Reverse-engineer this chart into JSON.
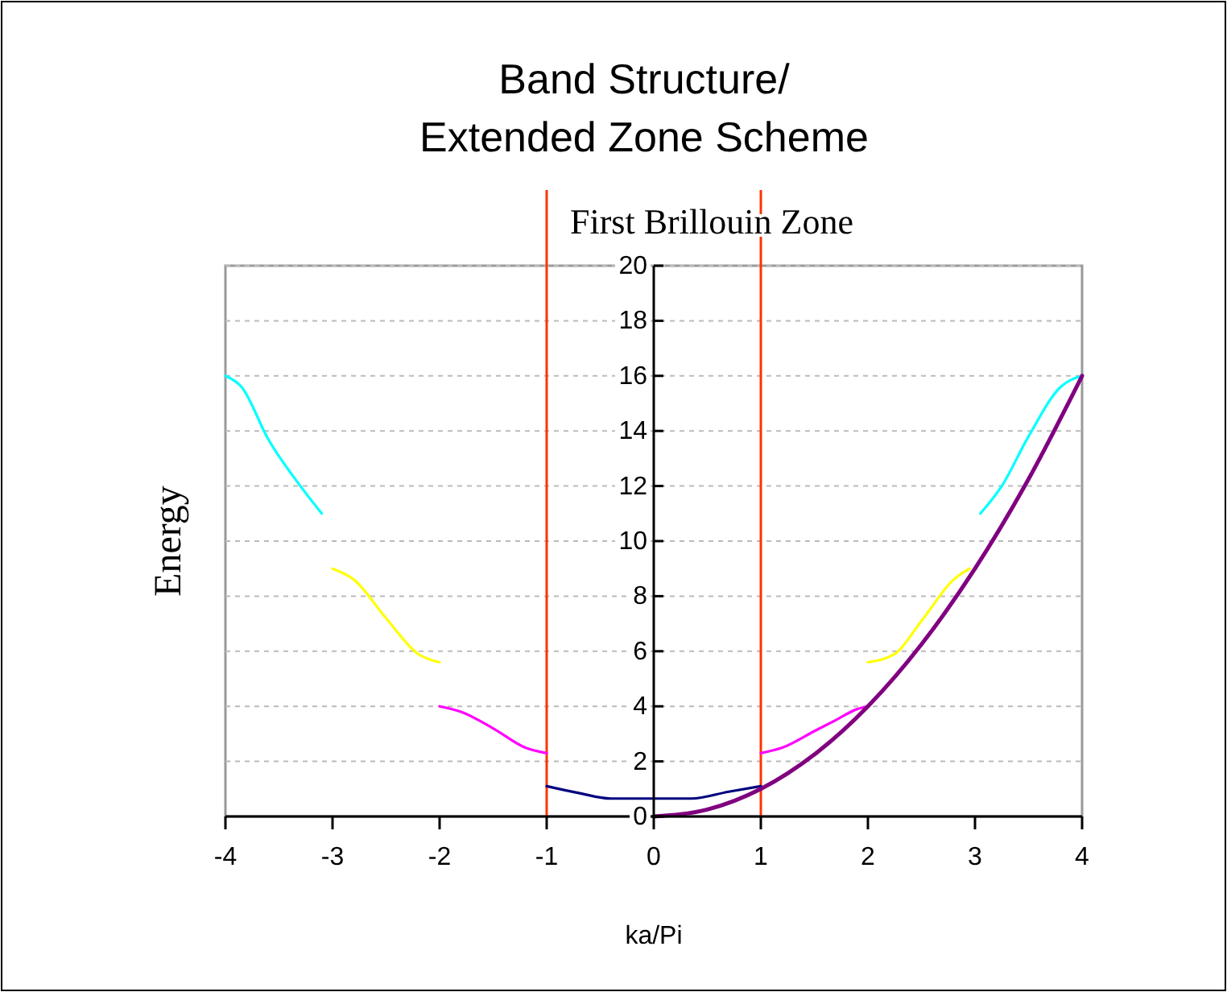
{
  "chart_data": {
    "type": "line",
    "title": "Band Structure/\nExtended Zone Scheme",
    "xlabel": "ka/Pi",
    "ylabel": "Energy",
    "annotations": [
      "First Brillouin Zone"
    ],
    "xlim": [
      -4,
      4
    ],
    "xticks": [
      -4,
      -3,
      -2,
      -1,
      0,
      1,
      2,
      3,
      4
    ],
    "ylim": [
      0,
      20
    ],
    "yticks": [
      0,
      2,
      4,
      6,
      8,
      10,
      12,
      14,
      16,
      18,
      20
    ],
    "grid": "y",
    "marker": "none",
    "line_style": "solid",
    "ref_lines": [
      {
        "axis": "x",
        "value": -1,
        "color": "#ff3300"
      },
      {
        "axis": "x",
        "value": 1,
        "color": "#ff3300"
      }
    ],
    "series": [
      {
        "color": "#000080",
        "x": [
          -1,
          -0.7,
          -0.4,
          0,
          0.35,
          0.7,
          1
        ],
        "values": [
          1.1,
          0.85,
          0.65,
          0.65,
          0.65,
          0.9,
          1.1
        ]
      },
      {
        "color": "#ff00ff",
        "x": [
          -2,
          -1.8,
          -1.5,
          -1.2,
          -1
        ],
        "values": [
          4,
          3.8,
          3.2,
          2.5,
          2.3
        ]
      },
      {
        "color": "#ff00ff",
        "x": [
          1,
          1.2,
          1.5,
          1.7,
          1.9,
          2
        ],
        "values": [
          2.3,
          2.5,
          3.1,
          3.5,
          3.9,
          4
        ]
      },
      {
        "color": "#ffff00",
        "x": [
          -3,
          -2.8,
          -2.5,
          -2.2,
          -2
        ],
        "values": [
          9,
          8.6,
          7.2,
          5.9,
          5.6
        ]
      },
      {
        "color": "#ffff00",
        "x": [
          2,
          2.25,
          2.5,
          2.8,
          2.95
        ],
        "values": [
          5.6,
          5.9,
          7.1,
          8.6,
          9
        ]
      },
      {
        "color": "#00ffff",
        "x": [
          -4,
          -3.85,
          -3.6,
          -3.3,
          -3.1
        ],
        "values": [
          16,
          15.6,
          13.7,
          12,
          11
        ]
      },
      {
        "color": "#00ffff",
        "x": [
          3.05,
          3.25,
          3.5,
          3.8,
          4
        ],
        "values": [
          11,
          12,
          13.8,
          15.6,
          16
        ]
      },
      {
        "color": "#800080",
        "x": [
          0,
          0.5,
          1,
          1.5,
          2,
          2.5,
          3,
          3.5,
          4
        ],
        "values": [
          0,
          0.25,
          1,
          2.25,
          4,
          6.25,
          9,
          12.25,
          16
        ]
      }
    ]
  }
}
